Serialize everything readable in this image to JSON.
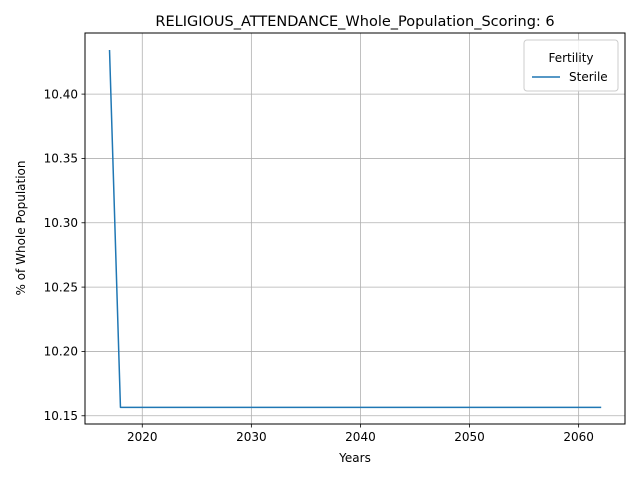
{
  "chart_data": {
    "type": "line",
    "title": "RELIGIOUS_ATTENDANCE_Whole_Population_Scoring: 6",
    "xlabel": "Years",
    "ylabel": "% of Whole Population",
    "xlim": [
      2014.75,
      2064.25
    ],
    "ylim": [
      10.1436,
      10.4475
    ],
    "x_ticks": [
      2020,
      2030,
      2040,
      2050,
      2060
    ],
    "y_ticks": [
      10.15,
      10.2,
      10.25,
      10.3,
      10.35,
      10.4
    ],
    "y_tick_labels": [
      "10.15",
      "10.20",
      "10.25",
      "10.30",
      "10.35",
      "10.40"
    ],
    "grid": true,
    "legend": {
      "title": "Fertility",
      "placement": "upper right"
    },
    "series": [
      {
        "name": "Sterile",
        "color": "#1f77b4",
        "x": [
          2017,
          2018,
          2062
        ],
        "y": [
          10.4337,
          10.1565,
          10.1565
        ]
      }
    ]
  }
}
